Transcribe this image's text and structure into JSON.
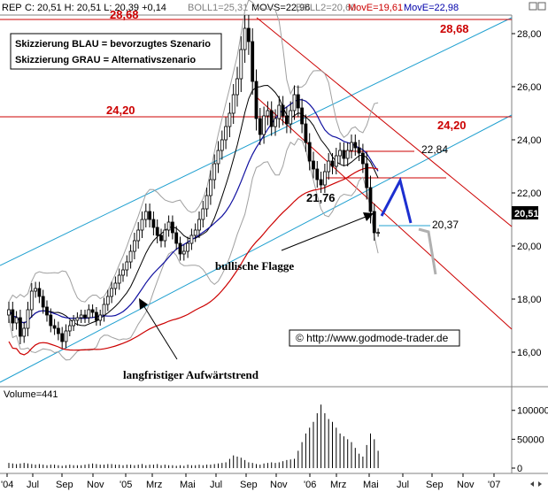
{
  "chart_data": {
    "type": "candlestick",
    "info_bar": {
      "ticker": "REP",
      "quote": "C: 20,51  H: 20,51  L: 20,39  +0,14",
      "boll1": "BOLL1=25,31",
      "movs": "MOVS=22,96",
      "boll2": "BOLL2=20,60",
      "move1": "MovE=19,61",
      "move2": "MovE=22,98"
    },
    "legend": {
      "line1": "Skizzierung BLAU = bevorzugtes Szenario",
      "line2": "Skizzierung GRAU = Alternativszenario"
    },
    "levels": {
      "top_left": "28,68",
      "top_right": "28,68",
      "mid_left": "24,20",
      "mid_right": "24,20",
      "l2284": "22,84",
      "l2176": "21,76",
      "l2037": "20,37"
    },
    "last_price_label": "20,51",
    "annotations": {
      "flag": "bullische Flagge",
      "trend": "langfristiger Aufwärtstrend",
      "copyright": "© http://www.godmode-trader.de"
    },
    "y_ticks": [
      "28,00",
      "26,00",
      "24,00",
      "22,00",
      "20,00",
      "18,00",
      "16,00"
    ],
    "y_tick_values": [
      28,
      26,
      24,
      22,
      20,
      18,
      16
    ],
    "ylim": [
      14.9,
      29.2
    ],
    "volume": {
      "label": "Volume=441",
      "ticks": [
        "100000",
        "50000",
        "0"
      ],
      "tick_values": [
        100000,
        50000,
        0
      ],
      "max": 118000
    },
    "x_labels": [
      "'04",
      "Jul",
      "Sep",
      "Nov",
      "'05",
      "Mrz",
      "Mai",
      "Jul",
      "Sep",
      "Nov",
      "'06",
      "Mrz",
      "Mai",
      "Jul",
      "Sep",
      "Nov",
      "'07"
    ],
    "series_weekly": {
      "close": [
        17.6,
        17.1,
        17.3,
        16.6,
        16.9,
        17.6,
        18.3,
        18.4,
        18.1,
        17.7,
        17.4,
        17.0,
        16.9,
        16.7,
        16.4,
        16.8,
        17.0,
        17.2,
        17.3,
        17.4,
        17.3,
        17.6,
        17.5,
        17.2,
        17.4,
        17.8,
        18.1,
        18.4,
        18.6,
        18.9,
        19.1,
        19.4,
        19.8,
        20.2,
        20.6,
        21.0,
        21.3,
        21.0,
        20.7,
        20.4,
        20.2,
        20.6,
        20.9,
        20.5,
        20.1,
        19.7,
        19.8,
        20.1,
        20.4,
        20.6,
        21.0,
        21.4,
        21.9,
        22.5,
        23.1,
        23.6,
        24.0,
        24.5,
        25.0,
        25.7,
        26.3,
        27.4,
        28.2,
        27.7,
        26.2,
        24.8,
        24.2,
        24.9,
        25.1,
        24.5,
        24.8,
        25.3,
        24.9,
        24.6,
        25.1,
        25.7,
        25.2,
        24.6,
        23.9,
        23.2,
        22.9,
        22.5,
        22.3,
        22.8,
        23.2,
        23.0,
        23.4,
        23.6,
        23.3,
        23.6,
        23.9,
        23.7,
        23.5,
        23.1,
        22.2,
        21.3,
        20.5,
        20.51
      ],
      "wick": [
        0.6,
        0.6,
        0.5,
        0.6,
        0.5,
        0.6,
        0.6,
        0.5,
        0.5,
        0.5,
        0.5,
        0.5,
        0.5,
        0.5,
        0.5,
        0.5,
        0.4,
        0.4,
        0.4,
        0.4,
        0.4,
        0.4,
        0.4,
        0.4,
        0.4,
        0.5,
        0.5,
        0.5,
        0.5,
        0.5,
        0.5,
        0.5,
        0.5,
        0.6,
        0.6,
        0.6,
        0.6,
        0.6,
        0.6,
        0.6,
        0.5,
        0.5,
        0.5,
        0.5,
        0.5,
        0.5,
        0.5,
        0.5,
        0.5,
        0.5,
        0.6,
        0.6,
        0.6,
        0.7,
        0.7,
        0.7,
        0.7,
        0.7,
        0.8,
        0.8,
        0.9,
        1.0,
        1.0,
        1.0,
        1.0,
        0.9,
        0.8,
        0.7,
        0.7,
        0.7,
        0.7,
        0.7,
        0.7,
        0.7,
        0.7,
        0.7,
        0.7,
        0.7,
        0.7,
        0.7,
        0.7,
        0.6,
        0.6,
        0.6,
        0.6,
        0.6,
        0.6,
        0.6,
        0.6,
        0.6,
        0.6,
        0.6,
        0.6,
        0.7,
        0.9,
        0.9,
        0.6,
        0.3
      ],
      "volume": [
        9000,
        8000,
        7000,
        8000,
        9000,
        8000,
        7000,
        6000,
        7000,
        6000,
        5000,
        6000,
        6000,
        5000,
        4000,
        5000,
        6000,
        5000,
        5000,
        5000,
        6000,
        7000,
        8000,
        7000,
        6000,
        6000,
        7000,
        7000,
        6000,
        6000,
        5000,
        6000,
        6000,
        5000,
        6000,
        7000,
        5000,
        6000,
        6000,
        7000,
        5000,
        6000,
        5000,
        5000,
        4000,
        5000,
        4000,
        6000,
        5000,
        5000,
        6000,
        5000,
        6000,
        6000,
        7000,
        8000,
        9000,
        10000,
        16000,
        22000,
        20000,
        18000,
        14000,
        10000,
        9000,
        7000,
        6000,
        8000,
        9000,
        10000,
        9000,
        10000,
        12000,
        14000,
        15000,
        16000,
        30000,
        45000,
        60000,
        70000,
        80000,
        95000,
        110000,
        95000,
        85000,
        80000,
        70000,
        60000,
        55000,
        50000,
        45000,
        35000,
        25000,
        20000,
        40000,
        60000,
        50000,
        30000
      ]
    }
  }
}
